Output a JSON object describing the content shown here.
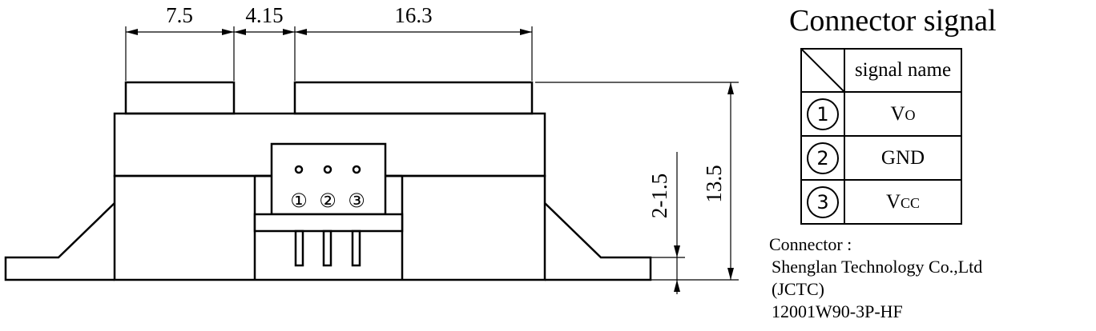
{
  "dimensions": {
    "top_left_width": "7.5",
    "gap_width": "4.15",
    "top_right_width": "16.3",
    "total_height": "13.5",
    "pin_length": "2-1.5"
  },
  "pins": [
    "①",
    "②",
    "③"
  ],
  "connector_signal": {
    "title": "Connector signal",
    "header": "signal name",
    "rows": [
      {
        "pin": "1",
        "name": "V",
        "sub": "O"
      },
      {
        "pin": "2",
        "name": "GND",
        "sub": ""
      },
      {
        "pin": "3",
        "name": "V",
        "sub": "CC"
      }
    ]
  },
  "connector_info": {
    "label": "Connector :",
    "manufacturer": "Shenglan Technology Co.,Ltd",
    "abbreviation": "(JCTC)",
    "part_number": "12001W90-3P-HF"
  }
}
